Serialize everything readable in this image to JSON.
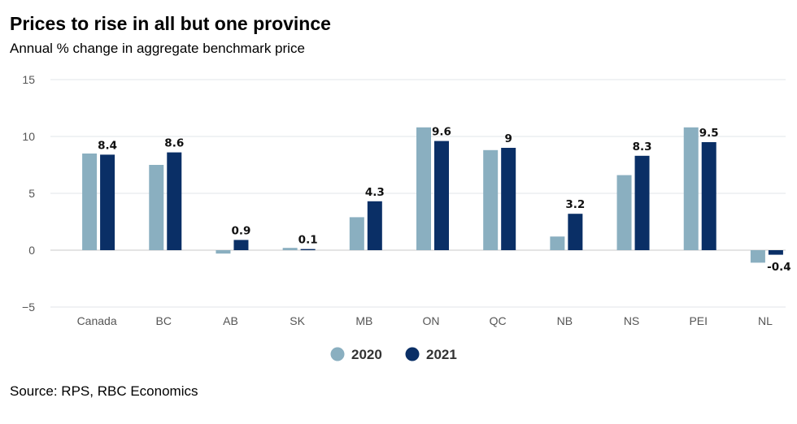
{
  "header": {
    "title": "Prices to rise in all but one province",
    "subtitle": "Annual % change in aggregate benchmark price"
  },
  "footer": {
    "source": "Source: RPS, RBC Economics"
  },
  "colors": {
    "2020": "#8aafc0",
    "2021": "#0a2f66"
  },
  "chart_data": {
    "type": "bar",
    "title": "Prices to rise in all but one province",
    "subtitle": "Annual % change in aggregate benchmark price",
    "categories": [
      "Canada",
      "BC",
      "AB",
      "SK",
      "MB",
      "ON",
      "QC",
      "NB",
      "NS",
      "PEI",
      "NL"
    ],
    "series": [
      {
        "name": "2020",
        "values": [
          8.5,
          7.5,
          -0.3,
          0.2,
          2.9,
          10.8,
          8.8,
          1.2,
          6.6,
          10.8,
          -1.1
        ]
      },
      {
        "name": "2021",
        "values": [
          8.4,
          8.6,
          0.9,
          0.1,
          4.3,
          9.6,
          9,
          3.2,
          8.3,
          9.5,
          -0.4
        ]
      }
    ],
    "data_labels": [
      "8.4",
      "8.6",
      "0.9",
      "0.1",
      "4.3",
      "9.6",
      "9",
      "3.2",
      "8.3",
      "9.5",
      "-0.4"
    ],
    "yticks": [
      "15",
      "10",
      "5",
      "0",
      "−5"
    ],
    "ytick_values": [
      15,
      10,
      5,
      0,
      -5
    ],
    "ylim": [
      -5,
      15
    ],
    "grid": true,
    "legend_position": "bottom-center",
    "xlabel": "",
    "ylabel": ""
  }
}
